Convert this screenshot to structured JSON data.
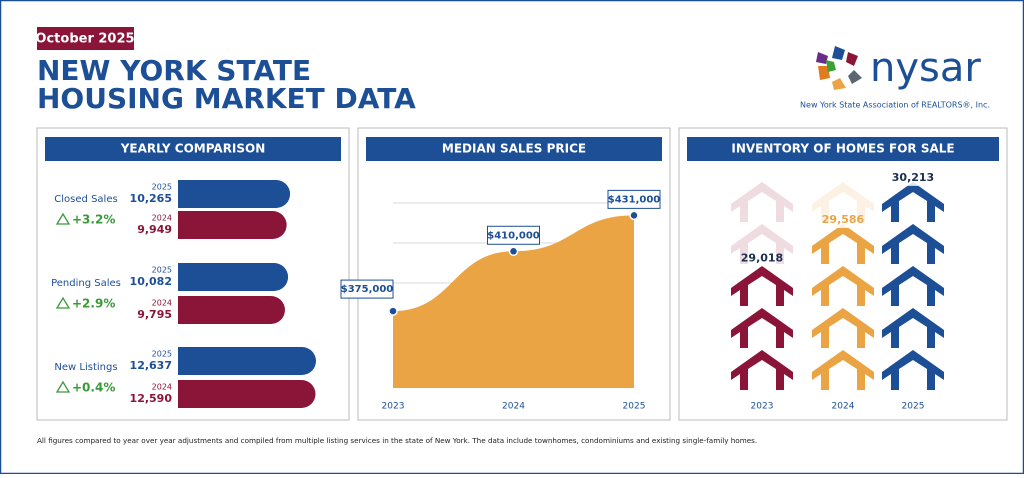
{
  "header": {
    "badge": "October 2025",
    "title_line1": "NEW YORK STATE",
    "title_line2": "HOUSING MARKET DATA"
  },
  "logo": {
    "name": "nysar",
    "tagline": "New York State Association of REALTORS®, Inc."
  },
  "chart_data": [
    {
      "type": "hbar",
      "title": "YEARLY COMPARISON",
      "categories": [
        "Closed Sales",
        "Pending Sales",
        "New Listings"
      ],
      "changes": [
        "+3.2%",
        "+2.9%",
        "+0.4%"
      ],
      "series": [
        {
          "name": "2025",
          "color": "#1c4f96",
          "values": [
            10265,
            10082,
            12637
          ],
          "value_labels": [
            "10,265",
            "10,082",
            "12,637"
          ]
        },
        {
          "name": "2024",
          "color": "#8a1538",
          "values": [
            9949,
            9795,
            12590
          ],
          "value_labels": [
            "9,949",
            "9,795",
            "12,590"
          ]
        }
      ]
    },
    {
      "type": "area",
      "title": "MEDIAN SALES PRICE",
      "x": [
        "2023",
        "2024",
        "2025"
      ],
      "values": [
        375000,
        410000,
        431000
      ],
      "value_labels": [
        "$375,000",
        "$410,000",
        "$431,000"
      ],
      "color": "#eba443",
      "ylim": [
        330000,
        440000
      ],
      "grid": true
    },
    {
      "type": "pictograph",
      "title": "INVENTORY OF HOMES FOR SALE",
      "categories": [
        "2023",
        "2024",
        "2025"
      ],
      "values": [
        29018,
        29586,
        30213
      ],
      "value_labels": [
        "29,018",
        "29,586",
        "30,213"
      ],
      "colors": [
        "#8a1538",
        "#eba443",
        "#1c4f96"
      ],
      "ylim": [
        27150,
        30300
      ]
    }
  ],
  "footer": "All figures compared to year over year adjustments and compiled from multiple listing services in the state of New York.  The data include townhomes, condominiums and existing single-family homes."
}
